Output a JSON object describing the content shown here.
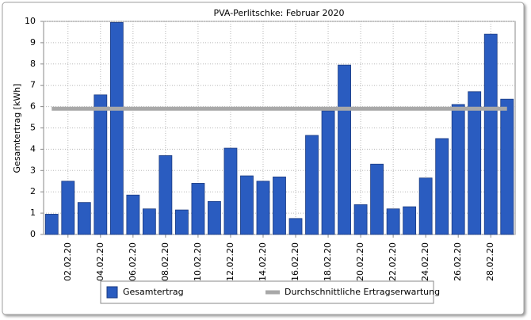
{
  "chart_data": {
    "type": "bar",
    "title": "PVA-Perlitschke: Februar 2020",
    "y_label": "Gesamtertrag [kWh]",
    "categories": [
      null,
      "02.02.20",
      null,
      "04.02.20",
      null,
      "06.02.20",
      null,
      "08.02.20",
      null,
      "10.02.20",
      null,
      "12.02.20",
      null,
      "14.02.20",
      null,
      "16.02.20",
      null,
      "18.02.20",
      null,
      "20.02.20",
      null,
      "22.02.20",
      null,
      "24.02.20",
      null,
      "26.02.20",
      null,
      "28.02.20",
      null
    ],
    "series": [
      {
        "name": "Gesamtertrag",
        "type": "bar",
        "color": "#2a5cc0",
        "values": [
          0.95,
          2.5,
          1.5,
          6.55,
          9.95,
          1.85,
          1.2,
          3.7,
          1.15,
          2.4,
          1.55,
          4.05,
          2.75,
          2.5,
          2.7,
          0.75,
          4.65,
          5.8,
          7.95,
          1.4,
          3.3,
          1.2,
          1.3,
          2.65,
          4.5,
          6.1,
          6.7,
          9.4,
          6.35
        ]
      },
      {
        "name": "Durchschnittliche Ertragserwartung",
        "type": "line",
        "color": "#a8a8a8",
        "values": [
          5.9,
          5.9,
          5.9,
          5.9,
          5.9,
          5.9,
          5.9,
          5.9,
          5.9,
          5.9,
          5.9,
          5.9,
          5.9,
          5.9,
          5.9,
          5.9,
          5.9,
          5.9,
          5.9,
          5.9,
          5.9,
          5.9,
          5.9,
          5.9,
          5.9,
          5.9,
          5.9,
          5.9,
          5.9
        ]
      }
    ],
    "ylim": [
      0,
      10
    ],
    "yticks": [
      0,
      1,
      2,
      3,
      4,
      5,
      6,
      7,
      8,
      9,
      10
    ],
    "grid": true
  }
}
